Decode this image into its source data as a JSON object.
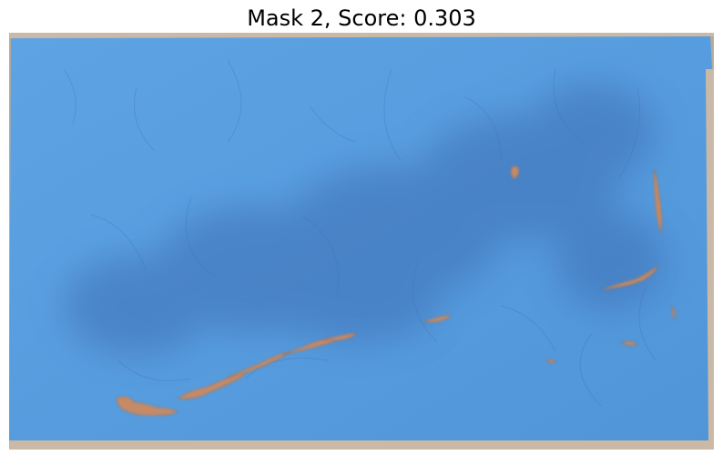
{
  "title": "Mask 2, Score: 0.303",
  "image": {
    "description_icon": "segmentation-mask-overlay",
    "overlay_color": "#5a9fe0",
    "background_color": "#b9ab98",
    "shadow_color": "#3f6fb6",
    "crack_color": "#c58a67"
  }
}
